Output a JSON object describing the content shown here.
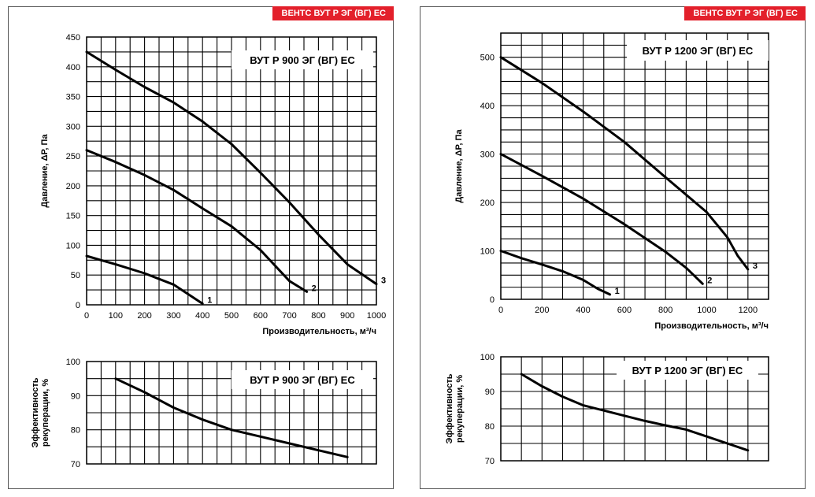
{
  "panels": [
    {
      "id": "left",
      "banner": "ВЕНТС ВУТ Р ЭГ (ВГ) ЕС",
      "pressure": {
        "type": "line",
        "title": "ВУТ Р 900 ЭГ (ВГ) ЕС",
        "ylabel": "Давление, ΔP, Па",
        "xlabel": "Производительность, м³/ч",
        "xlim": [
          0,
          1000
        ],
        "ylim": [
          0,
          450
        ],
        "xticks": [
          "0",
          "100",
          "200",
          "300",
          "400",
          "500",
          "600",
          "700",
          "800",
          "900",
          "1000"
        ],
        "yticks": [
          "0",
          "50",
          "100",
          "150",
          "200",
          "250",
          "300",
          "350",
          "400",
          "450"
        ],
        "grid": true,
        "series": [
          {
            "name": "1",
            "points": [
              [
                0,
                82
              ],
              [
                100,
                68
              ],
              [
                200,
                53
              ],
              [
                300,
                34
              ],
              [
                350,
                18
              ],
              [
                400,
                2
              ]
            ]
          },
          {
            "name": "2",
            "points": [
              [
                0,
                260
              ],
              [
                100,
                240
              ],
              [
                200,
                218
              ],
              [
                300,
                193
              ],
              [
                400,
                162
              ],
              [
                500,
                132
              ],
              [
                600,
                92
              ],
              [
                700,
                40
              ],
              [
                760,
                22
              ]
            ]
          },
          {
            "name": "3",
            "points": [
              [
                0,
                425
              ],
              [
                100,
                395
              ],
              [
                200,
                366
              ],
              [
                300,
                340
              ],
              [
                400,
                308
              ],
              [
                500,
                270
              ],
              [
                600,
                222
              ],
              [
                700,
                172
              ],
              [
                800,
                118
              ],
              [
                900,
                68
              ],
              [
                1000,
                35
              ]
            ]
          }
        ]
      },
      "efficiency": {
        "type": "line",
        "title": "ВУТ Р 900 ЭГ (ВГ) ЕС",
        "ylabel_lines": [
          "Эффективность",
          "рекуперации, %"
        ],
        "xlim": [
          0,
          1000
        ],
        "ylim": [
          70,
          100
        ],
        "yticks": [
          "70",
          "80",
          "90",
          "100"
        ],
        "grid": true,
        "series": [
          {
            "points": [
              [
                100,
                95
              ],
              [
                200,
                91
              ],
              [
                300,
                86.5
              ],
              [
                400,
                83
              ],
              [
                500,
                80
              ],
              [
                600,
                78
              ],
              [
                700,
                76
              ],
              [
                800,
                74
              ],
              [
                900,
                72
              ]
            ]
          }
        ]
      }
    },
    {
      "id": "right",
      "banner": "ВЕНТС ВУТ Р ЭГ (ВГ) ЕС",
      "pressure": {
        "type": "line",
        "title": "ВУТ Р 1200 ЭГ (ВГ) ЕС",
        "ylabel": "Давление, ΔP, Па",
        "xlabel": "Производительность, м³/ч",
        "xlim": [
          0,
          1300
        ],
        "ylim": [
          0,
          550
        ],
        "xticks": [
          "0",
          "200",
          "400",
          "600",
          "800",
          "1000",
          "1200"
        ],
        "yticks": [
          "0",
          "100",
          "200",
          "300",
          "400",
          "500"
        ],
        "grid": true,
        "series": [
          {
            "name": "1",
            "points": [
              [
                0,
                100
              ],
              [
                100,
                85
              ],
              [
                200,
                72
              ],
              [
                300,
                58
              ],
              [
                400,
                40
              ],
              [
                470,
                22
              ],
              [
                530,
                10
              ]
            ]
          },
          {
            "name": "2",
            "points": [
              [
                0,
                300
              ],
              [
                200,
                255
              ],
              [
                400,
                208
              ],
              [
                600,
                155
              ],
              [
                800,
                98
              ],
              [
                900,
                65
              ],
              [
                980,
                32
              ]
            ]
          },
          {
            "name": "3",
            "points": [
              [
                0,
                500
              ],
              [
                200,
                447
              ],
              [
                400,
                388
              ],
              [
                600,
                325
              ],
              [
                800,
                252
              ],
              [
                1000,
                180
              ],
              [
                1100,
                128
              ],
              [
                1150,
                90
              ],
              [
                1200,
                62
              ]
            ]
          }
        ]
      },
      "efficiency": {
        "type": "line",
        "title": "ВУТ Р 1200 ЭГ (ВГ) ЕС",
        "ylabel_lines": [
          "Эффективность",
          "рекуперации, %"
        ],
        "xlim": [
          0,
          1300
        ],
        "ylim": [
          70,
          100
        ],
        "yticks": [
          "70",
          "80",
          "90",
          "100"
        ],
        "grid": true,
        "series": [
          {
            "points": [
              [
                100,
                95
              ],
              [
                200,
                91.5
              ],
              [
                300,
                88.5
              ],
              [
                400,
                86
              ],
              [
                500,
                84.5
              ],
              [
                600,
                83
              ],
              [
                700,
                81.5
              ],
              [
                800,
                80.2
              ],
              [
                900,
                79
              ],
              [
                1000,
                77
              ],
              [
                1100,
                75
              ],
              [
                1200,
                73
              ]
            ]
          }
        ]
      }
    }
  ]
}
